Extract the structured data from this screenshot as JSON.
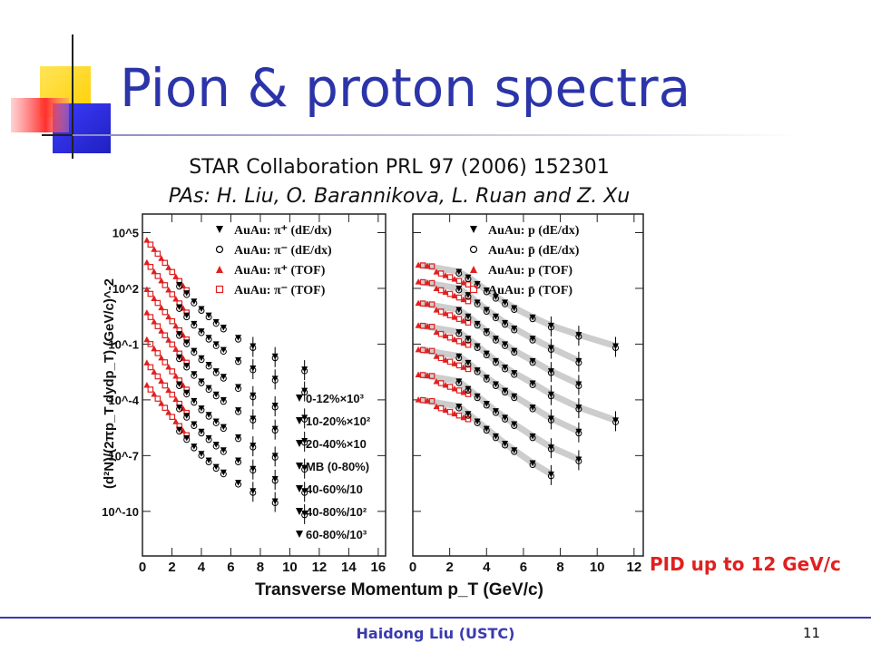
{
  "slide": {
    "title": "Pion & proton spectra",
    "citation": "STAR Collaboration PRL 97 (2006) 152301",
    "authors": "PAs: H. Liu, O. Barannikova, L. Ruan and Z. Xu",
    "pid_note": "PID up to 12 GeV/c",
    "footer": "Haidong Liu (USTC)",
    "page_number": "11"
  },
  "colors": {
    "title": "#2b34a8",
    "footer": "#3a3ab0",
    "note": "#e02020",
    "tof": "#e02020",
    "dedx": "#000000",
    "band": "#b8b8b8"
  },
  "icons": [
    "logo-decoration-squares"
  ],
  "chart_data": {
    "type": "scatter",
    "shared_x_axis_label": "Transverse Momentum p_T (GeV/c)",
    "y_axis_label": "(d²N)/(2πp_T dydp_T) (GeV/c)^-2",
    "y_scale": "log",
    "y_ticks": [
      "10^5",
      "10^2",
      "10^-1",
      "10^-4",
      "10^-7",
      "10^-10"
    ],
    "y_tick_values": [
      5,
      2,
      -1,
      -4,
      -7,
      -10
    ],
    "y_range_log10": [
      -12.4,
      6
    ],
    "centralities": [
      "0-12%×10³",
      "10-20%×10²",
      "20-40%×10",
      "MB (0-80%)",
      "40-60%/10",
      "40-80%/10²",
      "60-80%/10³"
    ],
    "panels": [
      {
        "name": "pions",
        "xlim": [
          0,
          16.5
        ],
        "x_ticks": [
          "0",
          "2",
          "4",
          "6",
          "8",
          "10",
          "12",
          "14",
          "16"
        ],
        "x_tick_values": [
          0,
          2,
          4,
          6,
          8,
          10,
          12,
          14,
          16
        ],
        "legend": [
          {
            "marker": "down-triangle-filled",
            "label": "AuAu: π⁺ (dE/dx)"
          },
          {
            "marker": "circle-open",
            "label": "AuAu: π⁻ (dE/dx)"
          },
          {
            "marker": "triangle-red",
            "label": "AuAu: π⁺ (TOF)"
          },
          {
            "marker": "square-red-open",
            "label": "AuAu: π⁻ (TOF)"
          }
        ],
        "tof_pt_max": 3.0,
        "dedx_x": [
          2.5,
          3.0,
          3.5,
          4.0,
          4.5,
          5.0,
          5.5,
          6.5,
          7.5,
          9.0,
          11.0
        ],
        "series": [
          {
            "name": "0-12%×10³",
            "values_log10": [
              2.2,
              1.75,
              1.3,
              0.9,
              0.55,
              0.2,
              -0.1,
              -0.65,
              -1.1,
              -1.65,
              -2.35
            ]
          },
          {
            "name": "10-20%×10²",
            "values_log10": [
              1.0,
              0.55,
              0.1,
              -0.3,
              -0.65,
              -1.0,
              -1.3,
              -1.85,
              -2.3,
              -2.85,
              -3.5
            ]
          },
          {
            "name": "20-40%×10",
            "values_log10": [
              -0.45,
              -0.9,
              -1.35,
              -1.75,
              -2.1,
              -2.45,
              -2.75,
              -3.3,
              -3.75,
              -4.3,
              -4.95
            ]
          },
          {
            "name": "MB (0-80%)",
            "values_log10": [
              -1.7,
              -2.15,
              -2.6,
              -3.0,
              -3.35,
              -3.7,
              -4.0,
              -4.55,
              -5.0,
              -5.55,
              -6.2
            ]
          },
          {
            "name": "40-60%/10",
            "values_log10": [
              -3.15,
              -3.6,
              -4.05,
              -4.45,
              -4.8,
              -5.15,
              -5.45,
              -6.0,
              -6.45,
              -7.0,
              -7.65
            ]
          },
          {
            "name": "40-80%/10²",
            "values_log10": [
              -4.4,
              -4.85,
              -5.3,
              -5.7,
              -6.05,
              -6.4,
              -6.7,
              -7.25,
              -7.7,
              -8.25,
              -8.9
            ]
          },
          {
            "name": "60-80%/10³",
            "values_log10": [
              -5.6,
              -6.05,
              -6.5,
              -6.9,
              -7.25,
              -7.6,
              -7.9,
              -8.45,
              -8.9,
              -9.45,
              -10.1
            ]
          }
        ]
      },
      {
        "name": "protons",
        "xlim": [
          0,
          12.5
        ],
        "x_ticks": [
          "0",
          "2",
          "4",
          "6",
          "8",
          "10",
          "12"
        ],
        "x_tick_values": [
          0,
          2,
          4,
          6,
          8,
          10,
          12
        ],
        "legend": [
          {
            "marker": "down-triangle-filled",
            "label": "AuAu: p (dE/dx)"
          },
          {
            "marker": "circle-open",
            "label": "AuAu: p̄ (dE/dx)"
          },
          {
            "marker": "triangle-red",
            "label": "AuAu: p (TOF)"
          },
          {
            "marker": "square-red-open",
            "label": "AuAu: p̄ (TOF)"
          }
        ],
        "tof_pt_max": 3.0,
        "dedx_x": [
          2.5,
          3.0,
          3.5,
          4.0,
          4.5,
          5.0,
          5.5,
          6.5,
          7.5,
          9.0,
          11.0
        ],
        "series": [
          {
            "name": "0-12%×10³",
            "values_log10": [
              2.9,
              2.6,
              2.25,
              1.9,
              1.55,
              1.25,
              0.95,
              0.45,
              0.0,
              -0.5,
              -1.1
            ]
          },
          {
            "name": "10-20%×10²",
            "values_log10": [
              2.0,
              1.65,
              1.25,
              0.85,
              0.5,
              0.15,
              -0.15,
              -0.7,
              -1.2,
              -1.9
            ]
          },
          {
            "name": "20-40%×10",
            "values_log10": [
              0.85,
              0.5,
              0.1,
              -0.3,
              -0.7,
              -1.0,
              -1.35,
              -1.9,
              -2.45,
              -3.15
            ]
          },
          {
            "name": "MB (0-80%)",
            "values_log10": [
              -0.35,
              -0.7,
              -1.1,
              -1.5,
              -1.9,
              -2.25,
              -2.55,
              -3.1,
              -3.7,
              -4.4,
              -5.1
            ]
          },
          {
            "name": "40-60%/10",
            "values_log10": [
              -1.65,
              -2.0,
              -2.4,
              -2.8,
              -3.15,
              -3.5,
              -3.8,
              -4.4,
              -5.0,
              -5.7
            ]
          },
          {
            "name": "40-80%/10²",
            "values_log10": [
              -3.0,
              -3.4,
              -3.8,
              -4.2,
              -4.6,
              -4.95,
              -5.3,
              -5.95,
              -6.55,
              -7.2
            ]
          },
          {
            "name": "60-80%/10³",
            "values_log10": [
              -4.35,
              -4.75,
              -5.15,
              -5.55,
              -5.95,
              -6.35,
              -6.7,
              -7.4,
              -8.0
            ]
          }
        ]
      }
    ]
  }
}
